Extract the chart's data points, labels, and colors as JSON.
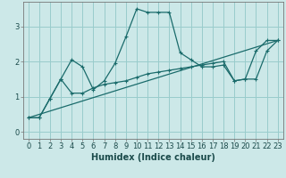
{
  "title": "",
  "xlabel": "Humidex (Indice chaleur)",
  "xlim": [
    -0.5,
    23.5
  ],
  "ylim": [
    -0.2,
    3.7
  ],
  "bg_color": "#cce8e8",
  "grid_color": "#99cccc",
  "line_color": "#1a6b6b",
  "line1_x": [
    0,
    1,
    2,
    3,
    4,
    5,
    6,
    7,
    8,
    9,
    10,
    11,
    12,
    13,
    14,
    15,
    16,
    17,
    18,
    19,
    20,
    21,
    22,
    23
  ],
  "line1_y": [
    0.4,
    0.4,
    0.95,
    1.5,
    2.05,
    1.85,
    1.2,
    1.45,
    1.95,
    2.7,
    3.5,
    3.4,
    3.4,
    3.4,
    2.25,
    2.05,
    1.85,
    1.85,
    1.9,
    1.45,
    1.5,
    2.3,
    2.6,
    2.6
  ],
  "line2_x": [
    0,
    1,
    2,
    3,
    4,
    5,
    6,
    7,
    8,
    9,
    10,
    11,
    12,
    13,
    14,
    15,
    16,
    17,
    18,
    19,
    20,
    21,
    22,
    23
  ],
  "line2_y": [
    0.4,
    0.4,
    0.95,
    1.5,
    1.1,
    1.1,
    1.25,
    1.35,
    1.4,
    1.45,
    1.55,
    1.65,
    1.7,
    1.75,
    1.8,
    1.85,
    1.9,
    1.95,
    2.0,
    1.45,
    1.5,
    1.5,
    2.3,
    2.6
  ],
  "line3_x": [
    0,
    23
  ],
  "line3_y": [
    0.4,
    2.6
  ],
  "xticks": [
    0,
    1,
    2,
    3,
    4,
    5,
    6,
    7,
    8,
    9,
    10,
    11,
    12,
    13,
    14,
    15,
    16,
    17,
    18,
    19,
    20,
    21,
    22,
    23
  ],
  "yticks": [
    0,
    1,
    2,
    3
  ],
  "tick_fontsize": 6,
  "label_fontsize": 7,
  "label_fontweight": "bold"
}
